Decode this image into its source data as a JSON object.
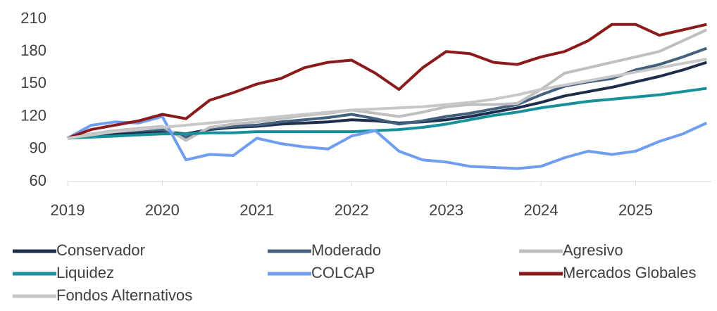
{
  "chart_data": {
    "type": "line",
    "x": [
      2019,
      2019.25,
      2019.5,
      2019.75,
      2020,
      2020.25,
      2020.5,
      2020.75,
      2021,
      2021.25,
      2021.5,
      2021.75,
      2022,
      2022.25,
      2022.5,
      2022.75,
      2023,
      2023.25,
      2023.5,
      2023.75,
      2024,
      2024.25,
      2024.5,
      2024.75,
      2025,
      2025.25,
      2025.5,
      2025.75
    ],
    "xlim": [
      2019,
      2025.8
    ],
    "xticks": [
      2019,
      2020,
      2021,
      2022,
      2023,
      2024,
      2025
    ],
    "ylim": [
      60,
      210
    ],
    "yticks": [
      60,
      90,
      120,
      150,
      180,
      210
    ],
    "series": [
      {
        "name": "Conservador",
        "color": "#1f2d4d",
        "values": [
          100,
          102,
          104,
          105,
          106,
          104,
          108,
          110,
          111,
          113,
          114,
          115,
          117,
          116,
          114,
          115,
          117,
          120,
          124,
          128,
          133,
          139,
          143,
          147,
          152,
          157,
          163,
          170
        ]
      },
      {
        "name": "Moderado",
        "color": "#44607f",
        "values": [
          100,
          103,
          106,
          107,
          108,
          101,
          109,
          111,
          112,
          115,
          117,
          119,
          122,
          118,
          113,
          116,
          120,
          123,
          127,
          131,
          140,
          148,
          152,
          155,
          163,
          168,
          175,
          183
        ]
      },
      {
        "name": "Agresivo",
        "color": "#bfbfbf",
        "values": [
          100,
          104,
          107,
          109,
          111,
          98,
          110,
          113,
          115,
          118,
          121,
          123,
          126,
          123,
          120,
          124,
          129,
          131,
          131,
          132,
          145,
          160,
          165,
          170,
          175,
          180,
          190,
          200
        ]
      },
      {
        "name": "Liquidez",
        "color": "#16909a",
        "values": [
          100,
          101,
          102,
          103,
          104,
          104,
          105,
          105,
          106,
          106,
          106,
          106,
          106,
          107,
          108,
          110,
          113,
          117,
          121,
          124,
          128,
          131,
          134,
          136,
          138,
          140,
          143,
          146
        ]
      },
      {
        "name": "COLCAP",
        "color": "#6f9ef0",
        "values": [
          100,
          112,
          115,
          114,
          120,
          80,
          85,
          84,
          100,
          95,
          92,
          90,
          102,
          107,
          88,
          80,
          78,
          74,
          73,
          72,
          74,
          82,
          88,
          85,
          88,
          97,
          104,
          114
        ]
      },
      {
        "name": "Mercados Globales",
        "color": "#8b1a1a",
        "values": [
          100,
          108,
          112,
          116,
          122,
          118,
          135,
          142,
          150,
          155,
          165,
          170,
          172,
          160,
          145,
          165,
          180,
          178,
          170,
          168,
          175,
          180,
          190,
          205,
          205,
          195,
          200,
          205
        ]
      },
      {
        "name": "Fondos Alternativos",
        "color": "#c8c8c8",
        "values": [
          100,
          103,
          106,
          108,
          110,
          112,
          114,
          116,
          118,
          120,
          122,
          124,
          126,
          127,
          128,
          129,
          131,
          133,
          136,
          140,
          145,
          149,
          153,
          157,
          161,
          165,
          169,
          173
        ]
      }
    ]
  }
}
